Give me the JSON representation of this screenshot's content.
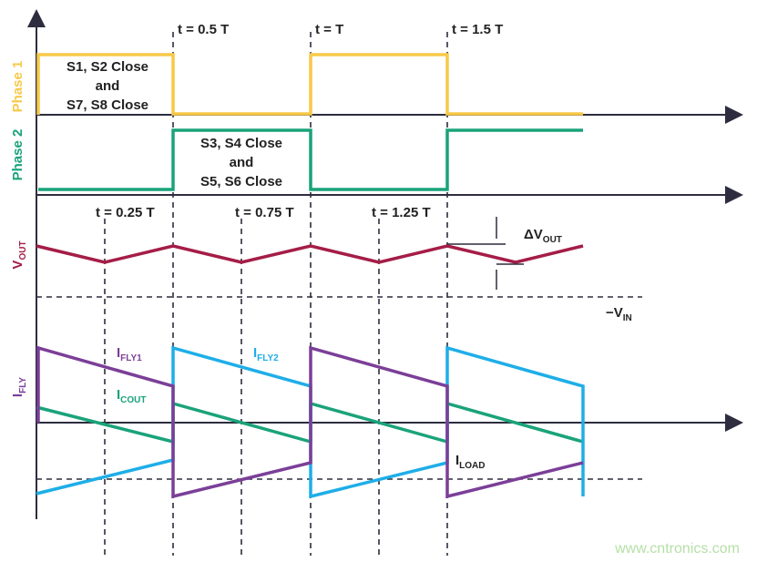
{
  "time_labels": [
    "t = 0.5 T",
    "t = T",
    "t = 1.5 T",
    "t = 0.25 T",
    "t = 0.75 T",
    "t = 1.25 T"
  ],
  "phase1": {
    "label": "Phase 1",
    "lines": [
      "S1, S2 Close",
      "and",
      "S7, S8 Close"
    ]
  },
  "phase2": {
    "label": "Phase 2",
    "lines": [
      "S3, S4 Close",
      "and",
      "S5, S6 Close"
    ]
  },
  "vout": {
    "main": "V",
    "sub": "OUT"
  },
  "delta_vout": {
    "main": "ΔV",
    "sub": "OUT"
  },
  "neg_vin": {
    "main": "−V",
    "sub": "IN"
  },
  "ifly": {
    "main": "I",
    "sub": "FLY"
  },
  "ifly1": {
    "main": "I",
    "sub": "FLY1"
  },
  "ifly2": {
    "main": "I",
    "sub": "FLY2"
  },
  "icout": {
    "main": "I",
    "sub": "COUT"
  },
  "iload": {
    "main": "I",
    "sub": "LOAD"
  },
  "watermark": "www.cntronics.com"
}
